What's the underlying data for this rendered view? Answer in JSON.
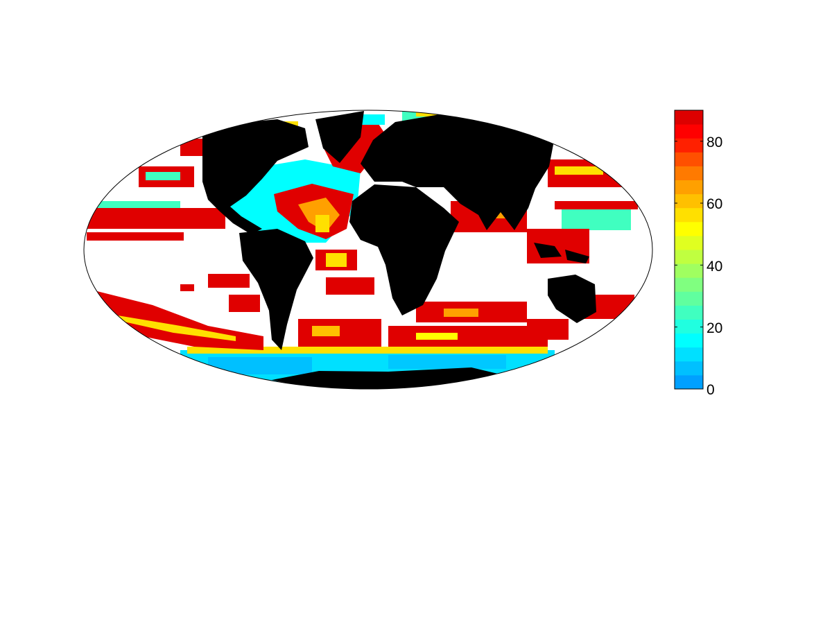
{
  "map": {
    "projection": "mollweide",
    "land_color": "#000000",
    "missing_color": "#ffffff"
  },
  "colorbar": {
    "min": 0,
    "max": 90,
    "step": 5,
    "ticks": [
      {
        "value": 0,
        "label": "0"
      },
      {
        "value": 20,
        "label": "20"
      },
      {
        "value": 40,
        "label": "40"
      },
      {
        "value": 60,
        "label": "60"
      },
      {
        "value": 80,
        "label": "80"
      }
    ],
    "colors": [
      "#00a0ff",
      "#00c0ff",
      "#00e0ff",
      "#00ffff",
      "#20ffe0",
      "#40ffc0",
      "#60ff9f",
      "#80ff80",
      "#a0ff60",
      "#c0ff40",
      "#e0ff20",
      "#ffff00",
      "#ffe000",
      "#ffc000",
      "#ffa000",
      "#ff7a00",
      "#ff5000",
      "#ff2000",
      "#ff0000",
      "#dd0000"
    ]
  }
}
